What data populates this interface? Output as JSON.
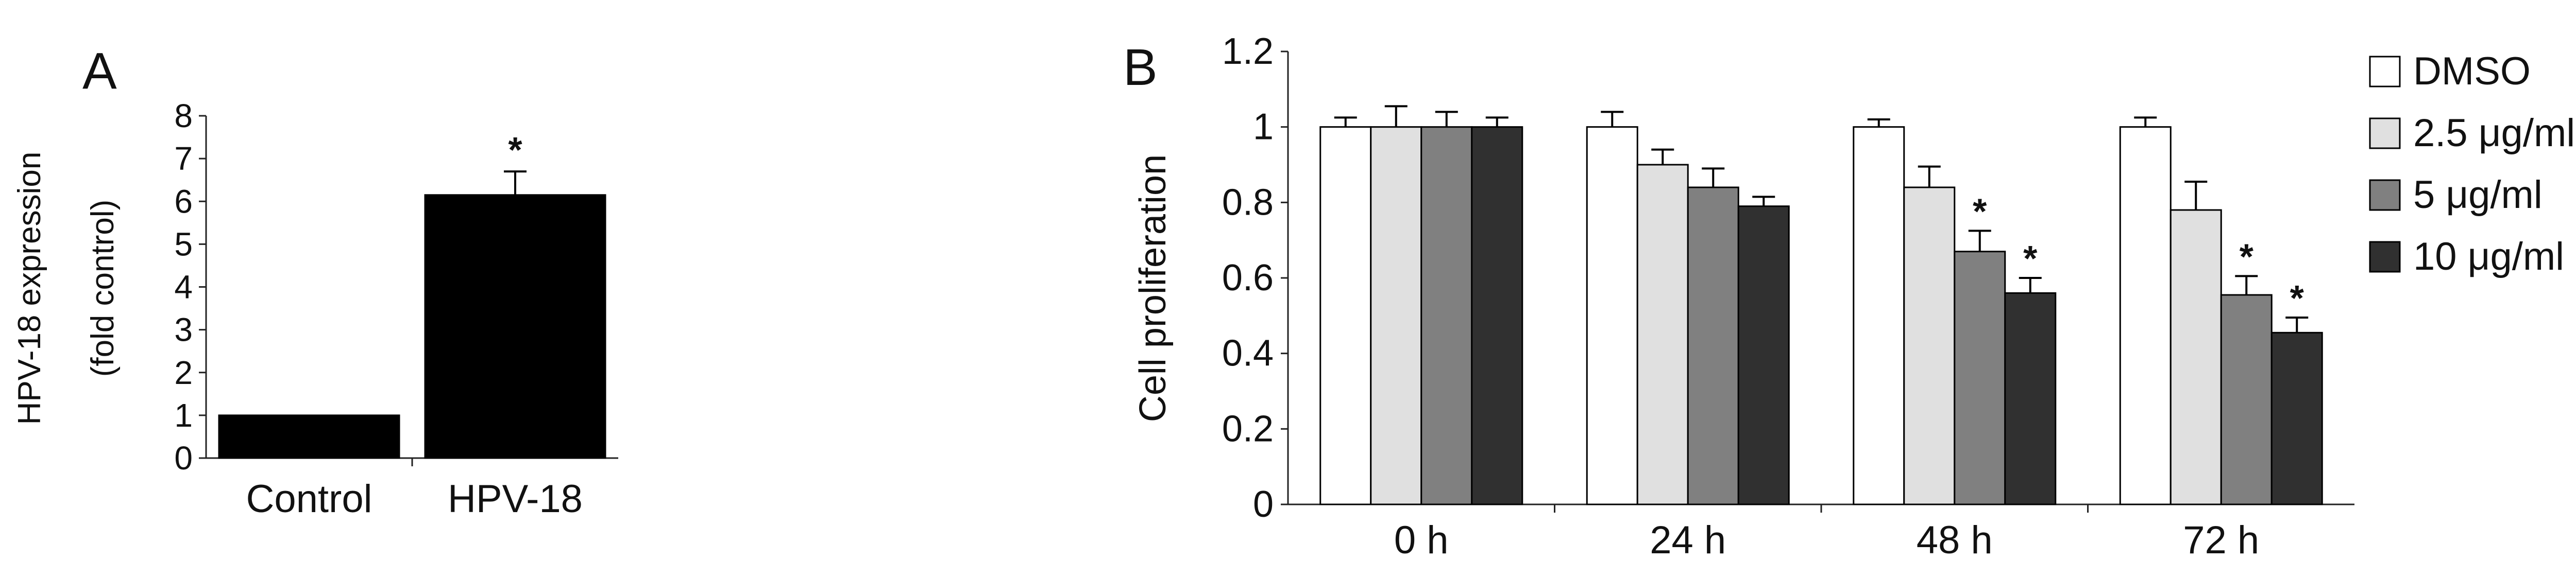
{
  "chart_data": [
    {
      "panel": "A",
      "type": "bar",
      "ylabel": "HPV-18 expression",
      "ylabel2": "(fold control)",
      "categories": [
        "Control",
        "HPV-18"
      ],
      "values": [
        1.0,
        6.15
      ],
      "errors": [
        0,
        0.55
      ],
      "significance": [
        "",
        "*"
      ],
      "ylim": [
        0,
        8
      ],
      "yticks": [
        "0",
        "1",
        "2",
        "3",
        "4",
        "5",
        "6",
        "7",
        "8"
      ],
      "colors": [
        "#000000",
        "#000000"
      ]
    },
    {
      "panel": "B",
      "type": "bar",
      "ylabel": "Cell proliferation",
      "categories": [
        "0 h",
        "24 h",
        "48 h",
        "72 h"
      ],
      "ylim": [
        0,
        1.2
      ],
      "yticks": [
        "0",
        "0.2",
        "0.4",
        "0.6",
        "0.8",
        "1",
        "1.2"
      ],
      "legend_position": "right",
      "series": [
        {
          "name": "DMSO",
          "color": "#ffffff",
          "values": [
            1.0,
            1.0,
            1.0,
            1.0
          ],
          "errors": [
            0.025,
            0.04,
            0.02,
            0.025
          ],
          "significance": [
            "",
            "",
            "",
            ""
          ]
        },
        {
          "name": "2.5 μg/ml",
          "color": "#e0e0e0",
          "values": [
            1.0,
            0.9,
            0.84,
            0.78
          ],
          "errors": [
            0.055,
            0.04,
            0.055,
            0.075
          ],
          "significance": [
            "",
            "",
            "",
            ""
          ]
        },
        {
          "name": "5 μg/ml",
          "color": "#808080",
          "values": [
            1.0,
            0.84,
            0.67,
            0.555
          ],
          "errors": [
            0.04,
            0.05,
            0.055,
            0.05
          ],
          "significance": [
            "",
            "",
            "*",
            "*"
          ]
        },
        {
          "name": "10 μg/ml",
          "color": "#303030",
          "values": [
            1.0,
            0.79,
            0.56,
            0.455
          ],
          "errors": [
            0.025,
            0.025,
            0.04,
            0.04
          ],
          "significance": [
            "",
            "",
            "*",
            "*"
          ]
        }
      ]
    }
  ]
}
